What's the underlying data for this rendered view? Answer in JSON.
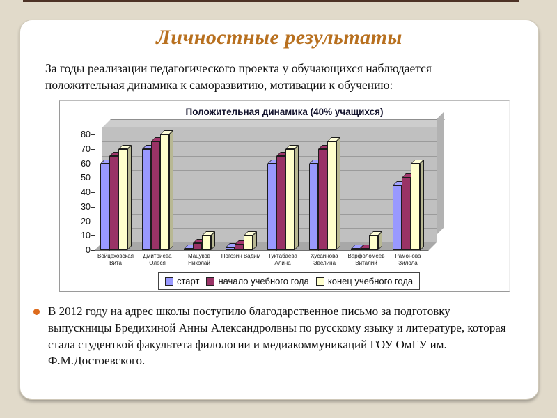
{
  "slide": {
    "title": "Личностные результаты",
    "intro": "За годы реализации педагогического проекта у  обучающихся наблюдается положительная динамика к саморазвитию, мотивации к обучению:",
    "bullet_text": "В 2012 году на адрес школы поступило благодарственное письмо за подготовку выпускницы Бредихиной Анны Александролвны по русскому языку и литературе, которая стала студенткой факультета филологии и медиакоммуникаций ГОУ  ОмГУ им. Ф.М.Достоевского."
  },
  "chart_data": {
    "type": "bar",
    "title": "Положительная динамика (40% учащихся)",
    "categories": [
      "Войцеховская Вита",
      "Дмитриева Олеся",
      "Мацуков Николай",
      "Погозин Вадим",
      "Туктабаева Алина",
      "Хусаинова Эвелина",
      "Варфоломеев Виталий",
      "Рамонова Зилола"
    ],
    "series": [
      {
        "name": "старт",
        "color": "#9999FF",
        "values": [
          60,
          70,
          1,
          2,
          60,
          60,
          1,
          45
        ]
      },
      {
        "name": "начало учебного года",
        "color": "#993366",
        "values": [
          65,
          75,
          5,
          4,
          65,
          70,
          1,
          50
        ]
      },
      {
        "name": "конец учебного года",
        "color": "#FFFFCC",
        "values": [
          70,
          80,
          10,
          10,
          70,
          75,
          10,
          60
        ]
      }
    ],
    "ylabel": "",
    "xlabel": "",
    "ylim": [
      0,
      80
    ],
    "ytick_step": 10,
    "grid": true,
    "legend_position": "bottom",
    "style": "3d-column",
    "wall_color": "#C0C0C0"
  },
  "colors": {
    "background": "#E1DACA",
    "card": "#FFFFFF",
    "top_strip": "#4D3226",
    "title": "#B8701F",
    "bullet_marker": "#DD6B1D"
  }
}
